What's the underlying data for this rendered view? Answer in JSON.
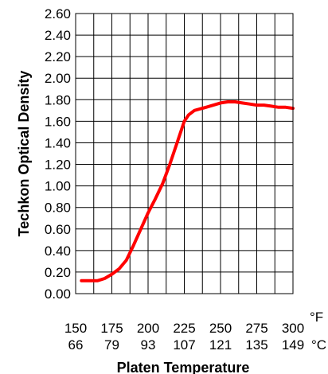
{
  "chart_data": {
    "type": "line",
    "xlabel": "Platen Temperature",
    "ylabel": "Techkon Optical Density",
    "xlim": [
      150,
      300
    ],
    "ylim": [
      0.0,
      2.6
    ],
    "grid": true,
    "y_ticks": [
      "0.00",
      "0.20",
      "0.40",
      "0.60",
      "0.80",
      "1.00",
      "1.20",
      "1.40",
      "1.60",
      "1.80",
      "2.00",
      "2.20",
      "2.40",
      "2.60"
    ],
    "x_ticks": [
      150,
      175,
      200,
      225,
      250,
      275,
      300
    ],
    "x_ticks_f": [
      "150",
      "175",
      "200",
      "225",
      "250",
      "275",
      "300"
    ],
    "x_ticks_c": [
      "66",
      "79",
      "93",
      "107",
      "121",
      "135",
      "149"
    ],
    "unit_f": "°F",
    "unit_c": "°C",
    "series": [
      {
        "color": "#ff0000",
        "x": [
          154,
          160,
          165,
          170,
          175,
          180,
          185,
          190,
          195,
          200,
          205,
          210,
          215,
          220,
          225,
          228,
          232,
          240,
          250,
          255,
          260,
          265,
          270,
          275,
          280,
          285,
          290,
          295,
          300
        ],
        "y": [
          0.12,
          0.12,
          0.12,
          0.14,
          0.18,
          0.23,
          0.31,
          0.45,
          0.6,
          0.75,
          0.88,
          1.02,
          1.2,
          1.4,
          1.6,
          1.66,
          1.7,
          1.73,
          1.77,
          1.78,
          1.78,
          1.77,
          1.76,
          1.75,
          1.75,
          1.74,
          1.73,
          1.73,
          1.72
        ]
      }
    ]
  }
}
